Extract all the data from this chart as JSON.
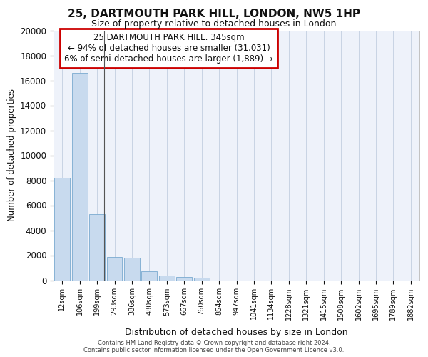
{
  "title_line1": "25, DARTMOUTH PARK HILL, LONDON, NW5 1HP",
  "title_line2": "Size of property relative to detached houses in London",
  "xlabel": "Distribution of detached houses by size in London",
  "ylabel": "Number of detached properties",
  "bar_color": "#c8daee",
  "bar_edge_color": "#7aaad0",
  "background_color": "#eef2fa",
  "categories": [
    "12sqm",
    "106sqm",
    "199sqm",
    "293sqm",
    "386sqm",
    "480sqm",
    "573sqm",
    "667sqm",
    "760sqm",
    "854sqm",
    "947sqm",
    "1041sqm",
    "1134sqm",
    "1228sqm",
    "1321sqm",
    "1415sqm",
    "1508sqm",
    "1602sqm",
    "1695sqm",
    "1789sqm",
    "1882sqm"
  ],
  "values": [
    8200,
    16600,
    5300,
    1850,
    1820,
    720,
    380,
    270,
    200,
    0,
    0,
    0,
    0,
    0,
    0,
    0,
    0,
    0,
    0,
    0,
    0
  ],
  "ylim": [
    0,
    20000
  ],
  "yticks": [
    0,
    2000,
    4000,
    6000,
    8000,
    10000,
    12000,
    14000,
    16000,
    18000,
    20000
  ],
  "annotation_text_line1": "25 DARTMOUTH PARK HILL: 345sqm",
  "annotation_text_line2": "← 94% of detached houses are smaller (31,031)",
  "annotation_text_line3": "6% of semi-detached houses are larger (1,889) →",
  "annotation_box_edgecolor": "#cc0000",
  "footer_line1": "Contains HM Land Registry data © Crown copyright and database right 2024.",
  "footer_line2": "Contains public sector information licensed under the Open Government Licence v3.0.",
  "vline_x_index": 2.42,
  "grid_color": "#c8d4e4"
}
